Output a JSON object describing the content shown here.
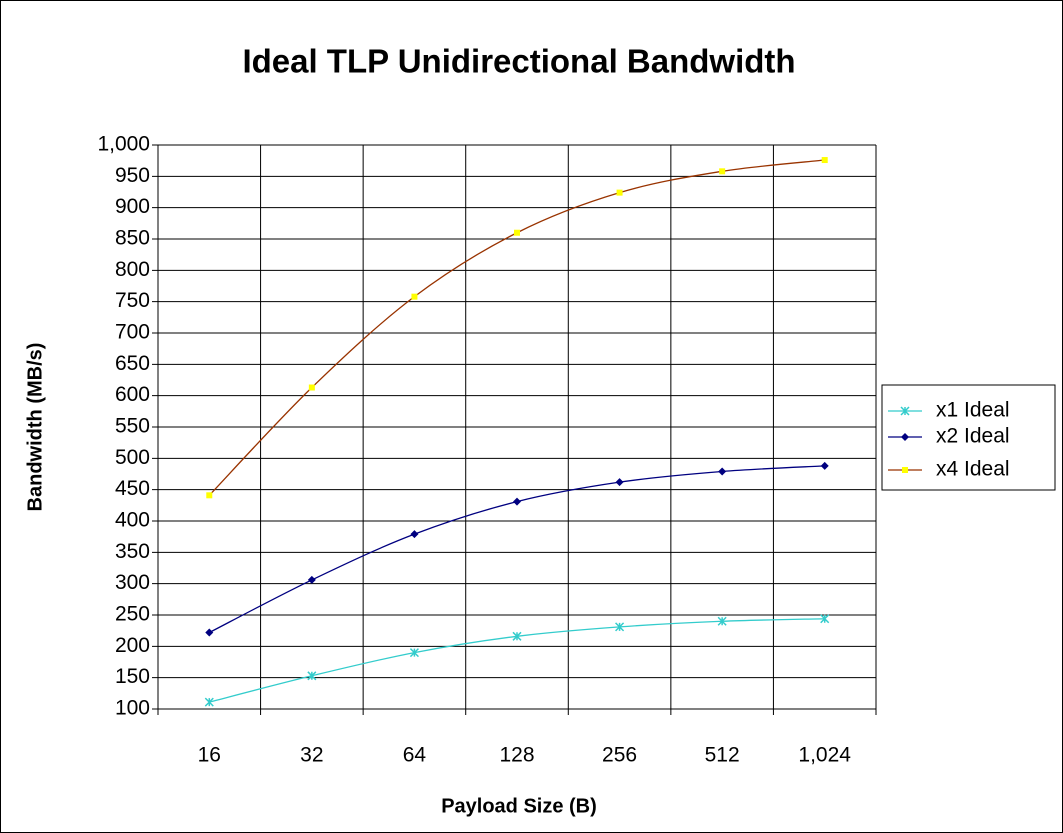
{
  "chart_data": {
    "type": "line",
    "title": "Ideal TLP Unidirectional Bandwidth",
    "x_label": "Payload Size (B)",
    "y_label": "Bandwidth (MB/s)",
    "categories": [
      "16",
      "32",
      "64",
      "128",
      "256",
      "512",
      "1,024"
    ],
    "series": [
      {
        "name": "x1 Ideal",
        "color": "#33cccc",
        "marker_color": "#33cccc",
        "marker": "asterisk",
        "values": [
          111,
          153,
          190,
          216,
          231,
          240,
          244
        ]
      },
      {
        "name": "x2 Ideal",
        "color": "#000080",
        "marker_color": "#000080",
        "marker": "diamond",
        "values": [
          222,
          306,
          379,
          431,
          462,
          479,
          488
        ]
      },
      {
        "name": "x4 Ideal",
        "color": "#993300",
        "marker_color": "#ffff00",
        "marker": "square",
        "values": [
          441,
          613,
          758,
          860,
          924,
          958,
          976
        ]
      }
    ],
    "ylim": [
      100,
      1000
    ],
    "yticks": [
      100,
      150,
      200,
      250,
      300,
      350,
      400,
      450,
      500,
      550,
      600,
      650,
      700,
      750,
      800,
      850,
      900,
      950,
      {
        "value": 1000,
        "label": "1,000"
      }
    ],
    "grid": true,
    "legend": "right"
  }
}
